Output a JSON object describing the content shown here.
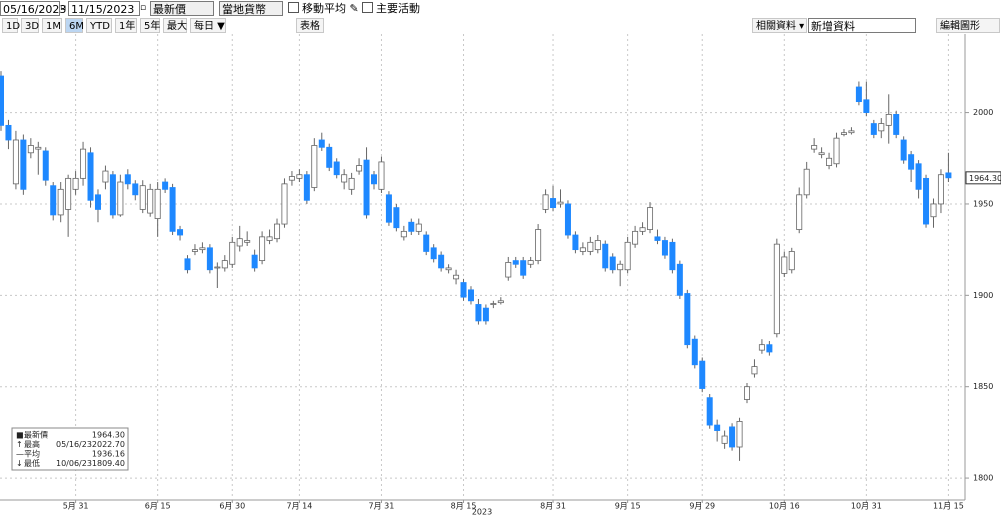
{
  "toolbar": {
    "start_date": "05/16/2023",
    "end_date": "11/15/2023",
    "field": "最新價",
    "currency": "當地貨幣",
    "checkboxes": [
      "移動平均",
      "主要活動"
    ],
    "range_buttons": [
      "1D",
      "3D",
      "1M",
      "6M",
      "YTD",
      "1年",
      "5年",
      "最大",
      "每日 ▼"
    ],
    "table_button": "表格",
    "right_buttons": [
      "相關資料 ▾",
      "新增資料",
      "編輯圖形"
    ]
  },
  "chart_data": {
    "type": "candlestick",
    "up_color": "#ffffff",
    "down_color": "#1e88ff",
    "grid": true,
    "year_label": "2023",
    "categories": [
      null,
      null,
      null,
      null,
      null,
      null,
      null,
      null,
      null,
      null,
      "5月 31",
      null,
      null,
      null,
      null,
      null,
      null,
      null,
      null,
      null,
      null,
      "6月 15",
      null,
      null,
      null,
      null,
      null,
      null,
      null,
      null,
      null,
      "6月 30",
      null,
      null,
      null,
      null,
      null,
      null,
      null,
      null,
      "7月 14",
      null,
      null,
      null,
      null,
      null,
      null,
      null,
      null,
      null,
      null,
      "7月 31",
      null,
      null,
      null,
      null,
      null,
      null,
      null,
      null,
      null,
      null,
      "8月 15",
      null,
      null,
      null,
      null,
      null,
      null,
      null,
      null,
      null,
      null,
      null,
      "8月 31",
      null,
      null,
      null,
      null,
      null,
      null,
      null,
      null,
      null,
      "9月 15",
      null,
      null,
      null,
      null,
      null,
      null,
      null,
      null,
      null,
      "9月 29",
      null,
      null,
      null,
      null,
      null,
      null,
      null,
      null,
      null,
      null,
      "10月 16",
      null,
      null,
      null,
      null,
      null,
      null,
      null,
      null,
      null,
      null,
      "10月 31",
      null,
      null,
      null,
      null,
      null,
      null,
      null,
      null,
      null,
      null,
      "11月 15"
    ],
    "open": [
      2020,
      1993,
      1961,
      1985,
      1978,
      1980,
      1979,
      1960,
      1944,
      1947,
      1958,
      1964,
      1978,
      1955,
      1962,
      1966,
      1944,
      1966,
      1961,
      1947,
      1945,
      1942,
      1962,
      1959,
      1936,
      1920,
      1924,
      1925,
      1926,
      1915,
      1915,
      1917,
      1927,
      1929,
      1922,
      1919,
      1930,
      1931,
      1939,
      1963,
      1964,
      1966,
      1959,
      1985,
      1981,
      1973,
      1962,
      1958,
      1968,
      1974,
      1966,
      1958,
      1955,
      1948,
      1932,
      1940,
      1935,
      1933,
      1926,
      1922,
      1914,
      1909,
      1907,
      1903,
      1895,
      1893,
      1895,
      1896,
      1910,
      1919,
      1919,
      1917,
      1919,
      1947,
      1953,
      1950,
      1950,
      1933,
      1924,
      1924,
      1925,
      1928,
      1921,
      1914,
      1914,
      1928,
      1935,
      1936,
      1932,
      1930,
      1929,
      1917,
      1901,
      1876,
      1864,
      1844,
      1829,
      1819,
      1828,
      1817,
      1843,
      1857,
      1870,
      1873,
      1879,
      1912,
      1914,
      1936,
      1955,
      1980,
      1977,
      1971,
      1972,
      1988,
      1989,
      2014,
      2007,
      1994,
      1990,
      1993,
      1999,
      1985,
      1977,
      1972,
      1964,
      1943,
      1950,
      1967
    ],
    "high": [
      2022.7,
      1996,
      1990,
      1988,
      1986,
      1984,
      1981,
      1962,
      1962,
      1966,
      1968,
      1984,
      1981,
      1958,
      1971,
      1968,
      1966,
      1969,
      1963,
      1963,
      1961,
      1962,
      1964,
      1961,
      1938,
      1922,
      1928,
      1929,
      1928,
      1918,
      1922,
      1932,
      1938,
      1935,
      1925,
      1935,
      1936,
      1942,
      1964,
      1968,
      1969,
      1968,
      1986,
      1989,
      1983,
      1975,
      1969,
      1967,
      1975,
      1981,
      1968,
      1976,
      1957,
      1950,
      1938,
      1942,
      1942,
      1935,
      1928,
      1924,
      1917,
      1914,
      1909,
      1905,
      1898,
      1895,
      1897,
      1899,
      1921,
      1921,
      1921,
      1921,
      1939,
      1958,
      1960,
      1958,
      1952,
      1935,
      1929,
      1932,
      1933,
      1930,
      1923,
      1919,
      1932,
      1938,
      1940,
      1951,
      1936,
      1932,
      1931,
      1919,
      1903,
      1878,
      1866,
      1846,
      1832,
      1826,
      1830,
      1833,
      1852,
      1865,
      1876,
      1875,
      1931,
      1924,
      1926,
      1959,
      1973,
      1986,
      1981,
      1978,
      1989,
      1991,
      1992,
      2017,
      2017,
      1996,
      1997,
      2010,
      2001,
      1987,
      1979,
      1974,
      1966,
      1953,
      1969,
      1978
    ],
    "low": [
      1990,
      1980,
      1958,
      1955,
      1975,
      1966,
      1960,
      1941,
      1940,
      1932,
      1955,
      1960,
      1948,
      1940,
      1958,
      1942,
      1943,
      1958,
      1952,
      1945,
      1943,
      1932,
      1956,
      1933,
      1930,
      1912,
      1922,
      1923,
      1912,
      1904,
      1913,
      1915,
      1924,
      1927,
      1913,
      1917,
      1928,
      1929,
      1937,
      1960,
      1962,
      1950,
      1957,
      1979,
      1968,
      1964,
      1958,
      1955,
      1966,
      1942,
      1958,
      1956,
      1938,
      1935,
      1930,
      1933,
      1933,
      1922,
      1918,
      1913,
      1912,
      1906,
      1897,
      1895,
      1884,
      1884,
      1893,
      1895,
      1908,
      1915,
      1909,
      1915,
      1917,
      1945,
      1946,
      1948,
      1931,
      1923,
      1922,
      1922,
      1923,
      1913,
      1912,
      1905,
      1912,
      1926,
      1933,
      1934,
      1928,
      1920,
      1912,
      1898,
      1871,
      1860,
      1847,
      1827,
      1820,
      1816,
      1815,
      1809.4,
      1841,
      1855,
      1868,
      1867,
      1877,
      1910,
      1912,
      1934,
      1953,
      1978,
      1975,
      1969,
      1970,
      1987,
      1988,
      2004,
      1998,
      1986,
      1986,
      1983,
      1986,
      1972,
      1962,
      1953,
      1937,
      1937,
      1945,
      1962
    ],
    "close": [
      1993,
      1985,
      1985,
      1958,
      1982,
      1981,
      1963,
      1944,
      1958,
      1964,
      1964,
      1980,
      1952,
      1947,
      1968,
      1944,
      1962,
      1961,
      1955,
      1960,
      1958,
      1958,
      1958,
      1935,
      1933,
      1914,
      1925,
      1926,
      1914,
      1915.5,
      1919,
      1929,
      1931,
      1930,
      1915,
      1932,
      1932,
      1939,
      1961,
      1965,
      1966,
      1952,
      1982,
      1981,
      1970,
      1966,
      1966,
      1964,
      1971,
      1944,
      1961,
      1973,
      1940,
      1937,
      1935,
      1935,
      1939,
      1924,
      1920,
      1915,
      1915,
      1911,
      1899,
      1897,
      1886,
      1886,
      1895.5,
      1897,
      1918,
      1917,
      1911,
      1919,
      1936,
      1955,
      1948,
      1951,
      1933,
      1925,
      1926,
      1929,
      1930,
      1915,
      1914,
      1917,
      1929,
      1935,
      1937,
      1948,
      1930,
      1922,
      1914,
      1900,
      1873,
      1862,
      1849,
      1829,
      1826,
      1823,
      1817,
      1831,
      1850,
      1861,
      1873,
      1869,
      1928,
      1921,
      1924,
      1955,
      1969,
      1982,
      1978,
      1975,
      1986,
      1989,
      1990,
      2006,
      2000,
      1988,
      1994,
      1999,
      1988,
      1974,
      1969,
      1958,
      1939,
      1950,
      1966,
      1964.3
    ],
    "ylim": [
      1788,
      2043
    ],
    "yticks": [
      1800,
      1850,
      1900,
      1950,
      2000
    ],
    "legend": [
      {
        "label": "最新價",
        "value": "1964.30"
      },
      {
        "label": "最高",
        "date": "05/16/23",
        "value": "2022.70"
      },
      {
        "label": "平均",
        "value": "1936.16"
      },
      {
        "label": "最低",
        "date": "10/06/23",
        "value": "1809.40"
      }
    ]
  }
}
